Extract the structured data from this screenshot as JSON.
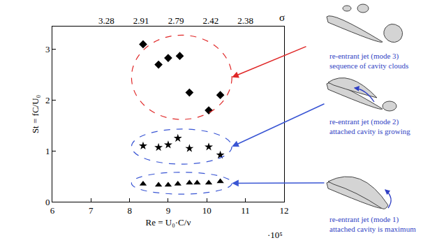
{
  "chart_data": {
    "type": "scatter",
    "xlabel": "Re = U₀·C/ν",
    "x_multiplier": "·10⁵",
    "ylabel": "St = fC/U₀",
    "xlim": [
      6,
      12
    ],
    "xticks": [
      6,
      7,
      8,
      9,
      10,
      11,
      12
    ],
    "ylim": [
      0,
      3.45
    ],
    "yticks": [
      0,
      1,
      2,
      3
    ],
    "x2label": "σ",
    "x2ticks": [
      {
        "value": 7.4,
        "label": "3.28"
      },
      {
        "value": 8.3,
        "label": "2.91"
      },
      {
        "value": 9.2,
        "label": "2.79"
      },
      {
        "value": 10.1,
        "label": "2.42"
      },
      {
        "value": 11.0,
        "label": "2.38"
      }
    ],
    "grid": false,
    "series": [
      {
        "marker": "diamond",
        "color": "#000000",
        "x": [
          8.35,
          8.75,
          9.0,
          9.3,
          9.55,
          10.05,
          10.35
        ],
        "values": [
          3.1,
          2.7,
          2.83,
          2.87,
          2.15,
          1.8,
          2.1
        ],
        "annotation": [
          "re-entrant jet (mode 3)",
          "sequence of cavity clouds"
        ]
      },
      {
        "marker": "star",
        "color": "#000000",
        "x": [
          8.35,
          8.75,
          9.0,
          9.25,
          9.55,
          10.05,
          10.35
        ],
        "values": [
          1.1,
          1.07,
          1.12,
          1.25,
          1.05,
          1.08,
          0.92
        ],
        "annotation": [
          "re-entrant jet (mode 2)",
          "attached cavity is growing"
        ]
      },
      {
        "marker": "triangle-up",
        "color": "#000000",
        "x": [
          8.35,
          8.75,
          9.0,
          9.25,
          9.55,
          9.75,
          10.05,
          10.35
        ],
        "values": [
          0.35,
          0.33,
          0.33,
          0.35,
          0.37,
          0.37,
          0.37,
          0.4
        ],
        "annotation": [
          "re-entrant jet (mode 1)",
          "attached cavity is maximum"
        ]
      }
    ]
  }
}
